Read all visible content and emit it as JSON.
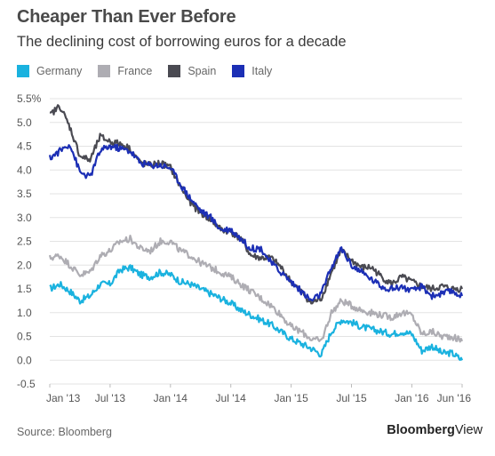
{
  "chart_data": {
    "type": "line",
    "title": "Cheaper Than Ever Before",
    "subtitle": "The declining cost of borrowing euros for a decade",
    "xlabel": "",
    "ylabel": "",
    "ylim": [
      -0.5,
      5.5
    ],
    "y_ticks": [
      "5.5%",
      "5.0",
      "4.5",
      "4.0",
      "3.5",
      "3.0",
      "2.5",
      "2.0",
      "1.5",
      "1.0",
      "0.5",
      "0.0",
      "-0.5"
    ],
    "x_ticks": [
      "Jan '13",
      "Jul '13",
      "Jan '14",
      "Jul '14",
      "Jan '15",
      "Jul '15",
      "Jan '16",
      "Jun '16"
    ],
    "grid": true,
    "legend": "top-left",
    "series": [
      {
        "name": "Germany",
        "color": "#1ab2df",
        "x": [
          "2013-01",
          "2013-02",
          "2013-03",
          "2013-04",
          "2013-05",
          "2013-06",
          "2013-07",
          "2013-08",
          "2013-09",
          "2013-10",
          "2013-11",
          "2013-12",
          "2014-01",
          "2014-02",
          "2014-03",
          "2014-04",
          "2014-05",
          "2014-06",
          "2014-07",
          "2014-08",
          "2014-09",
          "2014-10",
          "2014-11",
          "2014-12",
          "2015-01",
          "2015-02",
          "2015-03",
          "2015-04",
          "2015-05",
          "2015-06",
          "2015-07",
          "2015-08",
          "2015-09",
          "2015-10",
          "2015-11",
          "2015-12",
          "2016-01",
          "2016-02",
          "2016-03",
          "2016-04",
          "2016-05",
          "2016-06"
        ],
        "values": [
          1.5,
          1.6,
          1.45,
          1.25,
          1.35,
          1.6,
          1.6,
          1.9,
          1.95,
          1.8,
          1.75,
          1.85,
          1.8,
          1.65,
          1.6,
          1.5,
          1.4,
          1.3,
          1.2,
          1.05,
          0.95,
          0.85,
          0.75,
          0.6,
          0.45,
          0.35,
          0.25,
          0.12,
          0.6,
          0.85,
          0.8,
          0.7,
          0.65,
          0.6,
          0.55,
          0.6,
          0.55,
          0.2,
          0.3,
          0.15,
          0.15,
          0.0
        ]
      },
      {
        "name": "France",
        "color": "#aeadb3",
        "x": [
          "2013-01",
          "2013-02",
          "2013-03",
          "2013-04",
          "2013-05",
          "2013-06",
          "2013-07",
          "2013-08",
          "2013-09",
          "2013-10",
          "2013-11",
          "2013-12",
          "2014-01",
          "2014-02",
          "2014-03",
          "2014-04",
          "2014-05",
          "2014-06",
          "2014-07",
          "2014-08",
          "2014-09",
          "2014-10",
          "2014-11",
          "2014-12",
          "2015-01",
          "2015-02",
          "2015-03",
          "2015-04",
          "2015-05",
          "2015-06",
          "2015-07",
          "2015-08",
          "2015-09",
          "2015-10",
          "2015-11",
          "2015-12",
          "2016-01",
          "2016-02",
          "2016-03",
          "2016-04",
          "2016-05",
          "2016-06"
        ],
        "values": [
          2.15,
          2.2,
          2.0,
          1.8,
          1.85,
          2.2,
          2.3,
          2.5,
          2.55,
          2.35,
          2.3,
          2.5,
          2.5,
          2.3,
          2.2,
          2.05,
          1.95,
          1.85,
          1.75,
          1.6,
          1.45,
          1.3,
          1.15,
          0.95,
          0.7,
          0.6,
          0.45,
          0.4,
          1.0,
          1.25,
          1.15,
          1.05,
          1.0,
          0.95,
          0.9,
          1.0,
          0.95,
          0.55,
          0.6,
          0.5,
          0.5,
          0.4
        ]
      },
      {
        "name": "Spain",
        "color": "#4a4a52",
        "x": [
          "2013-01",
          "2013-02",
          "2013-03",
          "2013-04",
          "2013-05",
          "2013-06",
          "2013-07",
          "2013-08",
          "2013-09",
          "2013-10",
          "2013-11",
          "2013-12",
          "2014-01",
          "2014-02",
          "2014-03",
          "2014-04",
          "2014-05",
          "2014-06",
          "2014-07",
          "2014-08",
          "2014-09",
          "2014-10",
          "2014-11",
          "2014-12",
          "2015-01",
          "2015-02",
          "2015-03",
          "2015-04",
          "2015-05",
          "2015-06",
          "2015-07",
          "2015-08",
          "2015-09",
          "2015-10",
          "2015-11",
          "2015-12",
          "2016-01",
          "2016-02",
          "2016-03",
          "2016-04",
          "2016-05",
          "2016-06"
        ],
        "values": [
          5.15,
          5.35,
          4.9,
          4.3,
          4.2,
          4.7,
          4.6,
          4.55,
          4.45,
          4.15,
          4.1,
          4.15,
          4.05,
          3.65,
          3.3,
          3.1,
          2.95,
          2.75,
          2.7,
          2.55,
          2.2,
          2.15,
          2.15,
          1.95,
          1.65,
          1.45,
          1.2,
          1.3,
          1.85,
          2.3,
          2.1,
          1.95,
          1.95,
          1.75,
          1.6,
          1.75,
          1.65,
          1.55,
          1.5,
          1.55,
          1.5,
          1.5
        ]
      },
      {
        "name": "Italy",
        "color": "#1c2fb5",
        "x": [
          "2013-01",
          "2013-02",
          "2013-03",
          "2013-04",
          "2013-05",
          "2013-06",
          "2013-07",
          "2013-08",
          "2013-09",
          "2013-10",
          "2013-11",
          "2013-12",
          "2014-01",
          "2014-02",
          "2014-03",
          "2014-04",
          "2014-05",
          "2014-06",
          "2014-07",
          "2014-08",
          "2014-09",
          "2014-10",
          "2014-11",
          "2014-12",
          "2015-01",
          "2015-02",
          "2015-03",
          "2015-04",
          "2015-05",
          "2015-06",
          "2015-07",
          "2015-08",
          "2015-09",
          "2015-10",
          "2015-11",
          "2015-12",
          "2016-01",
          "2016-02",
          "2016-03",
          "2016-04",
          "2016-05",
          "2016-06"
        ],
        "values": [
          4.25,
          4.4,
          4.55,
          3.95,
          3.85,
          4.4,
          4.5,
          4.45,
          4.4,
          4.15,
          4.1,
          4.1,
          4.05,
          3.7,
          3.4,
          3.15,
          3.0,
          2.75,
          2.75,
          2.55,
          2.35,
          2.35,
          2.05,
          1.85,
          1.65,
          1.45,
          1.25,
          1.4,
          1.95,
          2.35,
          2.0,
          1.85,
          1.7,
          1.55,
          1.5,
          1.55,
          1.45,
          1.55,
          1.35,
          1.4,
          1.45,
          1.35
        ]
      }
    ]
  },
  "source": "Source: Bloomberg",
  "brand": {
    "bold": "Bloomberg",
    "light": "View"
  }
}
